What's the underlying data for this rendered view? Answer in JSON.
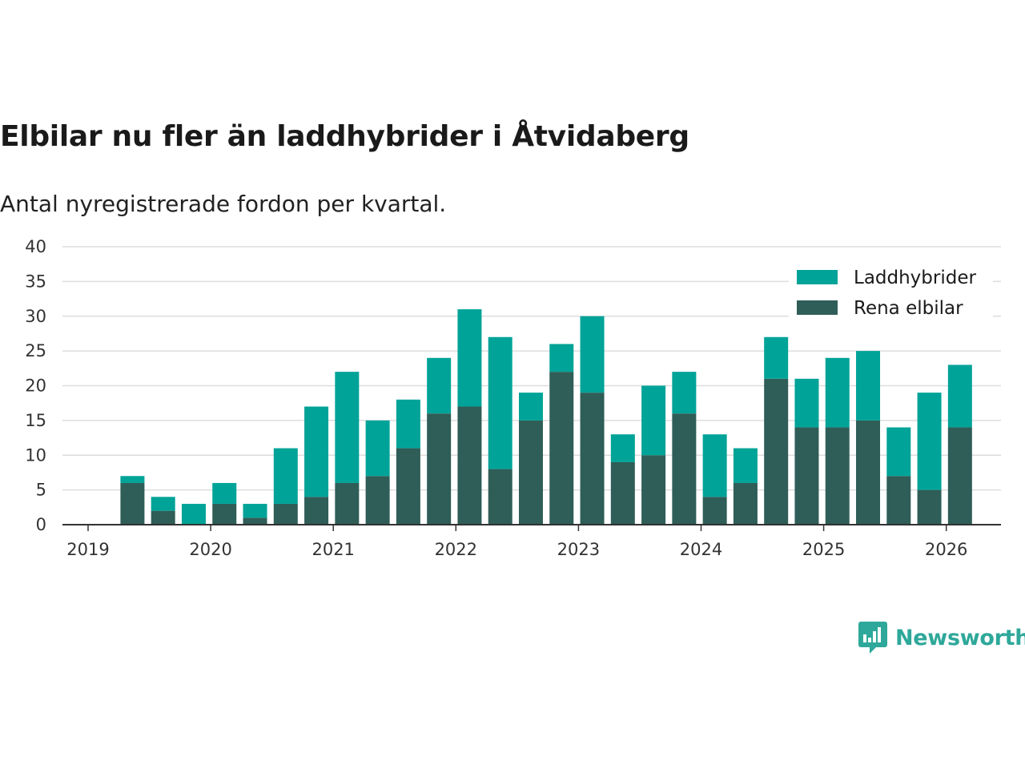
{
  "colors": {
    "laddhybrider": "#00a398",
    "elbilar": "#2f5d57",
    "grid": "#dddddd",
    "axis": "#333333",
    "brand": "#2ea89a"
  },
  "brand": {
    "name": "Newsworthy",
    "icon": "bar-chart-speech-bubble-icon"
  },
  "chart_data": {
    "type": "bar",
    "stacked": true,
    "title": "Elbilar nu fler än laddhybrider i Åtvidaberg",
    "subtitle": "Antal nyregistrerade fordon per kvartal.",
    "xlabel": "",
    "ylabel": "",
    "ylim": [
      0,
      40
    ],
    "yticks": [
      0,
      5,
      10,
      15,
      20,
      25,
      30,
      35,
      40
    ],
    "xticks": [
      "2019",
      "2020",
      "2021",
      "2022",
      "2023",
      "2024",
      "2025",
      "2026"
    ],
    "legend_position": "top-right",
    "categories": [
      "2019 Q2",
      "2019 Q3",
      "2019 Q4",
      "2020 Q1",
      "2020 Q2",
      "2020 Q3",
      "2020 Q4",
      "2021 Q1",
      "2021 Q2",
      "2021 Q3",
      "2021 Q4",
      "2022 Q1",
      "2022 Q2",
      "2022 Q3",
      "2022 Q4",
      "2023 Q1",
      "2023 Q2",
      "2023 Q3",
      "2023 Q4",
      "2024 Q1",
      "2024 Q2",
      "2024 Q3",
      "2024 Q4",
      "2025 Q1",
      "2025 Q2",
      "2025 Q3",
      "2025 Q4",
      "2026 Q1"
    ],
    "series": [
      {
        "name": "Rena elbilar",
        "values": [
          6,
          2,
          0,
          3,
          1,
          3,
          4,
          6,
          7,
          11,
          16,
          17,
          8,
          15,
          22,
          19,
          9,
          10,
          16,
          4,
          6,
          21,
          14,
          14,
          15,
          7,
          5,
          14
        ]
      },
      {
        "name": "Laddhybrider",
        "values": [
          1,
          2,
          3,
          3,
          2,
          8,
          13,
          16,
          8,
          7,
          8,
          14,
          19,
          4,
          4,
          11,
          4,
          10,
          6,
          9,
          5,
          6,
          7,
          10,
          10,
          7,
          14,
          9
        ]
      }
    ]
  }
}
